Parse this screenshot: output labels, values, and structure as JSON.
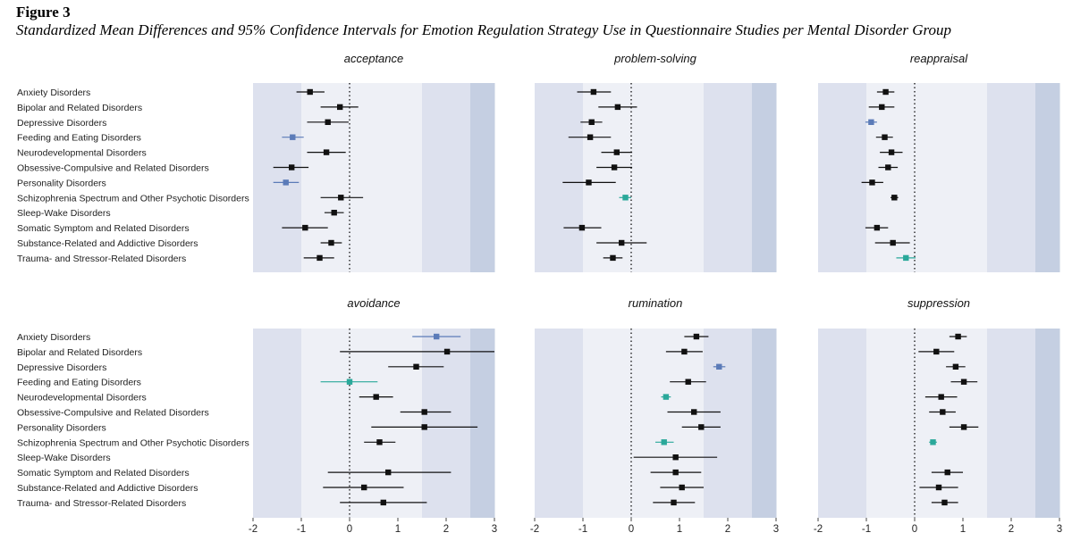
{
  "figure": {
    "label": "Figure 3",
    "title": "Standardized Mean Differences and 95% Confidence Intervals for Emotion Regulation Strategy Use in Questionnaire Studies per Mental Disorder Group"
  },
  "colors": {
    "default": "#111111",
    "blue": "#5b7bb8",
    "teal": "#2aa89a",
    "band_light": "#eef0f6",
    "band_mid": "#dde1ee",
    "band_dark": "#c5cfe2"
  },
  "chart_data": {
    "type": "forest",
    "xlim": [
      -2,
      3
    ],
    "x_ticks": [
      "-2",
      "-1",
      "0",
      "1",
      "2",
      "3"
    ],
    "reference_line": 0,
    "categories": [
      "Anxiety Disorders",
      "Bipolar and Related Disorders",
      "Depressive Disorders",
      "Feeding and Eating Disorders",
      "Neurodevelopmental Disorders",
      "Obsessive-Compulsive and Related Disorders",
      "Personality Disorders",
      "Schizophrenia Spectrum and Other Psychotic Disorders",
      "Sleep-Wake Disorders",
      "Somatic Symptom and Related Disorders",
      "Substance-Related and Addictive Disorders",
      "Trauma- and Stressor-Related Disorders"
    ],
    "panels": [
      {
        "title": "acceptance",
        "points": [
          {
            "est": -0.82,
            "lo": -1.1,
            "hi": -0.52,
            "color": "default"
          },
          {
            "est": -0.2,
            "lo": -0.6,
            "hi": 0.18,
            "color": "default"
          },
          {
            "est": -0.45,
            "lo": -0.88,
            "hi": -0.02,
            "color": "default"
          },
          {
            "est": -1.18,
            "lo": -1.4,
            "hi": -0.95,
            "color": "blue"
          },
          {
            "est": -0.48,
            "lo": -0.88,
            "hi": -0.08,
            "color": "default"
          },
          {
            "est": -1.2,
            "lo": -1.58,
            "hi": -0.85,
            "color": "default"
          },
          {
            "est": -1.32,
            "lo": -1.58,
            "hi": -1.05,
            "color": "blue"
          },
          {
            "est": -0.18,
            "lo": -0.6,
            "hi": 0.28,
            "color": "default"
          },
          {
            "est": -0.32,
            "lo": -0.52,
            "hi": -0.12,
            "color": "default"
          },
          {
            "est": -0.92,
            "lo": -1.4,
            "hi": -0.45,
            "color": "default"
          },
          {
            "est": -0.38,
            "lo": -0.6,
            "hi": -0.16,
            "color": "default"
          },
          {
            "est": -0.62,
            "lo": -0.95,
            "hi": -0.32,
            "color": "default"
          }
        ]
      },
      {
        "title": "problem-solving",
        "points": [
          {
            "est": -0.78,
            "lo": -1.12,
            "hi": -0.42,
            "color": "default"
          },
          {
            "est": -0.28,
            "lo": -0.68,
            "hi": 0.12,
            "color": "default"
          },
          {
            "est": -0.82,
            "lo": -1.05,
            "hi": -0.6,
            "color": "default"
          },
          {
            "est": -0.85,
            "lo": -1.3,
            "hi": -0.42,
            "color": "default"
          },
          {
            "est": -0.3,
            "lo": -0.62,
            "hi": 0.02,
            "color": "default"
          },
          {
            "est": -0.35,
            "lo": -0.72,
            "hi": 0.02,
            "color": "default"
          },
          {
            "est": -0.88,
            "lo": -1.42,
            "hi": -0.32,
            "color": "default"
          },
          {
            "est": -0.12,
            "lo": -0.25,
            "hi": 0.0,
            "color": "teal"
          },
          null,
          {
            "est": -1.02,
            "lo": -1.4,
            "hi": -0.62,
            "color": "default"
          },
          {
            "est": -0.2,
            "lo": -0.72,
            "hi": 0.32,
            "color": "default"
          },
          {
            "est": -0.38,
            "lo": -0.58,
            "hi": -0.18,
            "color": "default"
          }
        ]
      },
      {
        "title": "reappraisal",
        "points": [
          {
            "est": -0.6,
            "lo": -0.78,
            "hi": -0.42,
            "color": "default"
          },
          {
            "est": -0.68,
            "lo": -0.95,
            "hi": -0.42,
            "color": "default"
          },
          {
            "est": -0.9,
            "lo": -1.02,
            "hi": -0.78,
            "color": "blue"
          },
          {
            "est": -0.62,
            "lo": -0.8,
            "hi": -0.45,
            "color": "default"
          },
          {
            "est": -0.48,
            "lo": -0.72,
            "hi": -0.25,
            "color": "default"
          },
          {
            "est": -0.55,
            "lo": -0.75,
            "hi": -0.35,
            "color": "default"
          },
          {
            "est": -0.88,
            "lo": -1.1,
            "hi": -0.65,
            "color": "default"
          },
          {
            "est": -0.42,
            "lo": -0.5,
            "hi": -0.34,
            "color": "default"
          },
          null,
          {
            "est": -0.78,
            "lo": -1.02,
            "hi": -0.55,
            "color": "default"
          },
          {
            "est": -0.45,
            "lo": -0.82,
            "hi": -0.1,
            "color": "default"
          },
          {
            "est": -0.18,
            "lo": -0.38,
            "hi": 0.02,
            "color": "teal"
          }
        ]
      },
      {
        "title": "avoidance",
        "points": [
          {
            "est": 1.8,
            "lo": 1.3,
            "hi": 2.3,
            "color": "blue"
          },
          {
            "est": 2.02,
            "lo": -0.2,
            "hi": 3.05,
            "color": "default"
          },
          {
            "est": 1.38,
            "lo": 0.8,
            "hi": 1.95,
            "color": "default"
          },
          {
            "est": 0.0,
            "lo": -0.6,
            "hi": 0.58,
            "color": "teal"
          },
          {
            "est": 0.55,
            "lo": 0.2,
            "hi": 0.9,
            "color": "default"
          },
          {
            "est": 1.55,
            "lo": 1.05,
            "hi": 2.1,
            "color": "default"
          },
          {
            "est": 1.55,
            "lo": 0.45,
            "hi": 2.65,
            "color": "default"
          },
          {
            "est": 0.62,
            "lo": 0.3,
            "hi": 0.95,
            "color": "default"
          },
          null,
          {
            "est": 0.8,
            "lo": -0.45,
            "hi": 2.1,
            "color": "default"
          },
          {
            "est": 0.3,
            "lo": -0.55,
            "hi": 1.12,
            "color": "default"
          },
          {
            "est": 0.7,
            "lo": -0.2,
            "hi": 1.6,
            "color": "default"
          }
        ]
      },
      {
        "title": "rumination",
        "points": [
          {
            "est": 1.35,
            "lo": 1.1,
            "hi": 1.6,
            "color": "default"
          },
          {
            "est": 1.1,
            "lo": 0.72,
            "hi": 1.48,
            "color": "default"
          },
          {
            "est": 1.82,
            "lo": 1.7,
            "hi": 1.95,
            "color": "blue"
          },
          {
            "est": 1.18,
            "lo": 0.8,
            "hi": 1.55,
            "color": "default"
          },
          {
            "est": 0.72,
            "lo": 0.62,
            "hi": 0.82,
            "color": "teal"
          },
          {
            "est": 1.3,
            "lo": 0.75,
            "hi": 1.85,
            "color": "default"
          },
          {
            "est": 1.45,
            "lo": 1.05,
            "hi": 1.85,
            "color": "default"
          },
          {
            "est": 0.68,
            "lo": 0.5,
            "hi": 0.88,
            "color": "teal"
          },
          {
            "est": 0.92,
            "lo": 0.05,
            "hi": 1.78,
            "color": "default"
          },
          {
            "est": 0.92,
            "lo": 0.4,
            "hi": 1.45,
            "color": "default"
          },
          {
            "est": 1.05,
            "lo": 0.6,
            "hi": 1.5,
            "color": "default"
          },
          {
            "est": 0.88,
            "lo": 0.45,
            "hi": 1.32,
            "color": "default"
          }
        ]
      },
      {
        "title": "suppression",
        "points": [
          {
            "est": 0.9,
            "lo": 0.72,
            "hi": 1.08,
            "color": "default"
          },
          {
            "est": 0.45,
            "lo": 0.08,
            "hi": 0.82,
            "color": "default"
          },
          {
            "est": 0.85,
            "lo": 0.65,
            "hi": 1.05,
            "color": "default"
          },
          {
            "est": 1.02,
            "lo": 0.75,
            "hi": 1.3,
            "color": "default"
          },
          {
            "est": 0.55,
            "lo": 0.22,
            "hi": 0.88,
            "color": "default"
          },
          {
            "est": 0.58,
            "lo": 0.3,
            "hi": 0.85,
            "color": "default"
          },
          {
            "est": 1.02,
            "lo": 0.72,
            "hi": 1.32,
            "color": "default"
          },
          {
            "est": 0.38,
            "lo": 0.3,
            "hi": 0.46,
            "color": "teal"
          },
          null,
          {
            "est": 0.68,
            "lo": 0.35,
            "hi": 1.0,
            "color": "default"
          },
          {
            "est": 0.5,
            "lo": 0.1,
            "hi": 0.9,
            "color": "default"
          },
          {
            "est": 0.62,
            "lo": 0.35,
            "hi": 0.9,
            "color": "default"
          }
        ]
      }
    ]
  }
}
